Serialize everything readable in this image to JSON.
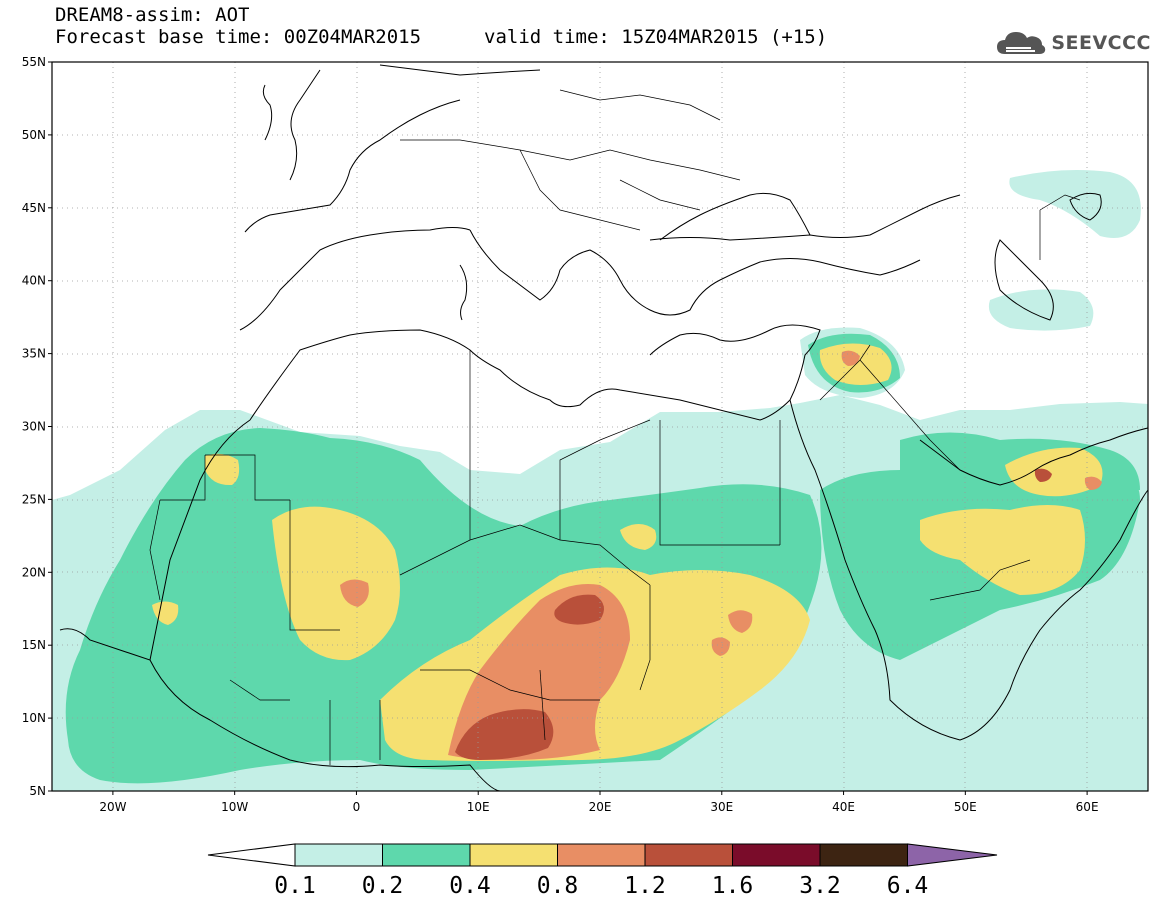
{
  "header": {
    "model_field": "DREAM8-assim: AOT",
    "base_time": "Forecast base time: 00Z04MAR2015",
    "valid_time": "valid time: 15Z04MAR2015 (+15)",
    "brand": "SEEVCCC"
  },
  "map": {
    "lon_range": [
      -25,
      65
    ],
    "lat_range": [
      5,
      55
    ],
    "lon_ticks": [
      -20,
      -10,
      0,
      10,
      20,
      30,
      40,
      50,
      60
    ],
    "lon_tick_labels": [
      "20W",
      "10W",
      "0",
      "10E",
      "20E",
      "30E",
      "40E",
      "50E",
      "60E"
    ],
    "lat_ticks": [
      55,
      50,
      45,
      40,
      35,
      30,
      25,
      20,
      15,
      10,
      5
    ],
    "lat_tick_labels": [
      "55N",
      "50N",
      "45N",
      "40N",
      "35N",
      "30N",
      "25N",
      "20N",
      "15N",
      "10N",
      "5N"
    ],
    "grid": "dotted"
  },
  "colorbar": {
    "levels": [
      "0.1",
      "0.2",
      "0.4",
      "0.8",
      "1.2",
      "1.6",
      "3.2",
      "6.4"
    ],
    "colors": [
      "#c4efe6",
      "#5ed8ac",
      "#f5e071",
      "#e88e64",
      "#b9503a",
      "#7a0c2a",
      "#3d2412",
      "#8d64a8"
    ],
    "under_color": "#ffffff"
  }
}
